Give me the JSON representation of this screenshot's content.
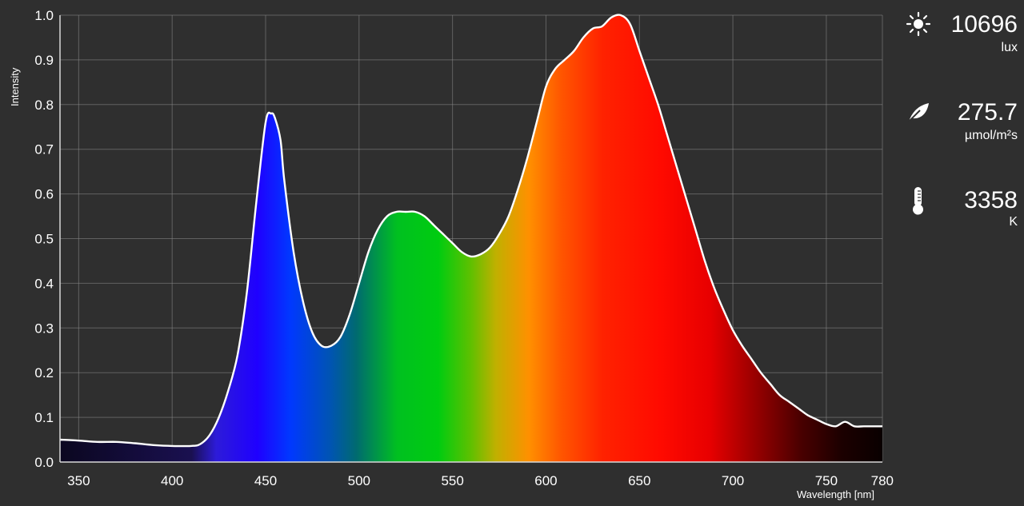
{
  "chart_data": {
    "type": "area",
    "xlabel": "Wavelength [nm]",
    "ylabel": "Intensity",
    "xlim": [
      340,
      780
    ],
    "ylim": [
      0,
      1.0
    ],
    "x_ticks": [
      350,
      400,
      450,
      500,
      550,
      600,
      650,
      700,
      750,
      780
    ],
    "y_ticks": [
      0.0,
      0.1,
      0.2,
      0.3,
      0.4,
      0.5,
      0.6,
      0.7,
      0.8,
      0.9,
      1.0
    ],
    "grid": true,
    "x": [
      340,
      350,
      360,
      370,
      380,
      390,
      400,
      410,
      415,
      420,
      425,
      430,
      435,
      440,
      445,
      450,
      453,
      455,
      458,
      460,
      465,
      470,
      475,
      480,
      485,
      490,
      495,
      500,
      505,
      510,
      515,
      520,
      525,
      530,
      535,
      540,
      545,
      550,
      555,
      560,
      565,
      570,
      575,
      580,
      585,
      590,
      595,
      600,
      605,
      610,
      615,
      620,
      625,
      630,
      635,
      640,
      645,
      650,
      655,
      660,
      665,
      670,
      675,
      680,
      685,
      690,
      695,
      700,
      705,
      710,
      715,
      720,
      725,
      730,
      735,
      740,
      745,
      750,
      755,
      760,
      765,
      770,
      775,
      780
    ],
    "y": [
      0.05,
      0.048,
      0.045,
      0.045,
      0.042,
      0.038,
      0.036,
      0.036,
      0.04,
      0.06,
      0.1,
      0.16,
      0.24,
      0.38,
      0.58,
      0.76,
      0.78,
      0.77,
      0.72,
      0.63,
      0.47,
      0.36,
      0.29,
      0.26,
      0.26,
      0.28,
      0.33,
      0.4,
      0.47,
      0.52,
      0.55,
      0.56,
      0.56,
      0.56,
      0.55,
      0.53,
      0.51,
      0.49,
      0.47,
      0.46,
      0.465,
      0.48,
      0.51,
      0.55,
      0.61,
      0.68,
      0.76,
      0.84,
      0.88,
      0.9,
      0.92,
      0.95,
      0.97,
      0.975,
      0.995,
      1.0,
      0.98,
      0.92,
      0.86,
      0.8,
      0.73,
      0.66,
      0.59,
      0.52,
      0.45,
      0.39,
      0.34,
      0.295,
      0.26,
      0.23,
      0.2,
      0.175,
      0.15,
      0.135,
      0.12,
      0.105,
      0.095,
      0.085,
      0.08,
      0.09,
      0.08,
      0.08,
      0.08,
      0.08
    ]
  },
  "readings": [
    {
      "value": "10696",
      "unit": "lux",
      "icon": "sun-icon"
    },
    {
      "value": "275.7",
      "unit": "µmol/m²s",
      "icon": "leaf-icon"
    },
    {
      "value": "3358",
      "unit": "K",
      "icon": "thermometer-icon"
    }
  ]
}
